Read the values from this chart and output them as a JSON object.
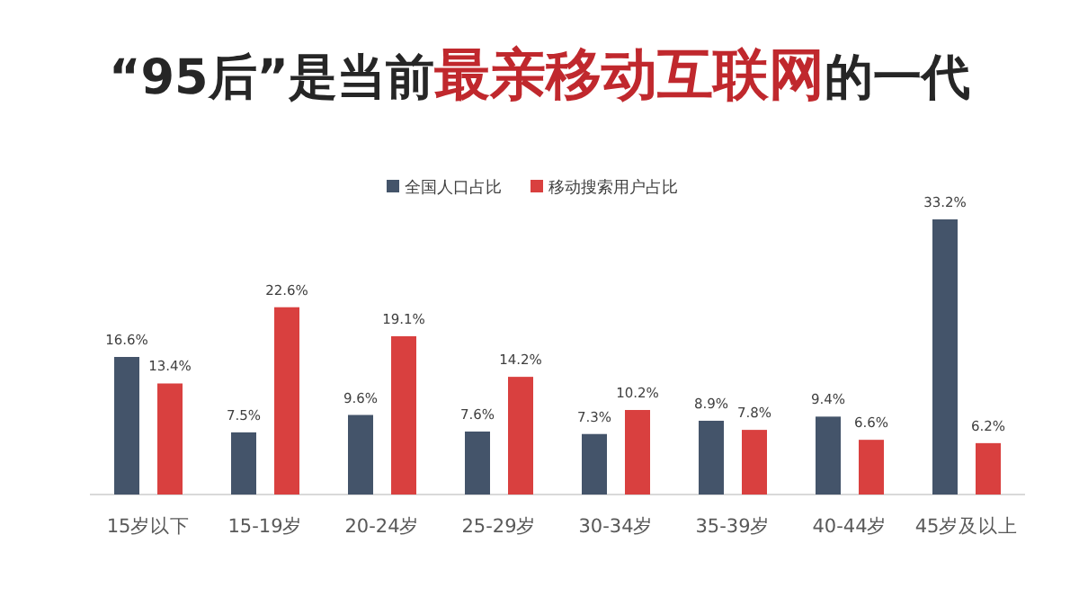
{
  "chart_data": {
    "type": "bar",
    "title": "“95后”是当前**最亲移动互联网**的一代",
    "categories": [
      "15岁以下",
      "15-19岁",
      "20-24岁",
      "25-29岁",
      "30-34岁",
      "35-39岁",
      "40-44岁",
      "45岁及以上"
    ],
    "series": [
      {
        "name": "全国人口占比",
        "color": "#44546a",
        "values": [
          16.6,
          7.5,
          9.6,
          7.6,
          7.3,
          8.9,
          9.4,
          33.2
        ],
        "value_labels": [
          "16.6%",
          "7.5%",
          "9.6%",
          "7.6%",
          "7.3%",
          "8.9%",
          "9.4%",
          "33.2%"
        ]
      },
      {
        "name": "移动搜索用户占比",
        "color": "#d9403f",
        "values": [
          13.4,
          22.6,
          19.1,
          14.2,
          10.2,
          7.8,
          6.6,
          6.2
        ],
        "value_labels": [
          "13.4%",
          "22.6%",
          "19.1%",
          "14.2%",
          "10.2%",
          "7.8%",
          "6.6%",
          "6.2%"
        ]
      }
    ],
    "legend": "top"
  }
}
